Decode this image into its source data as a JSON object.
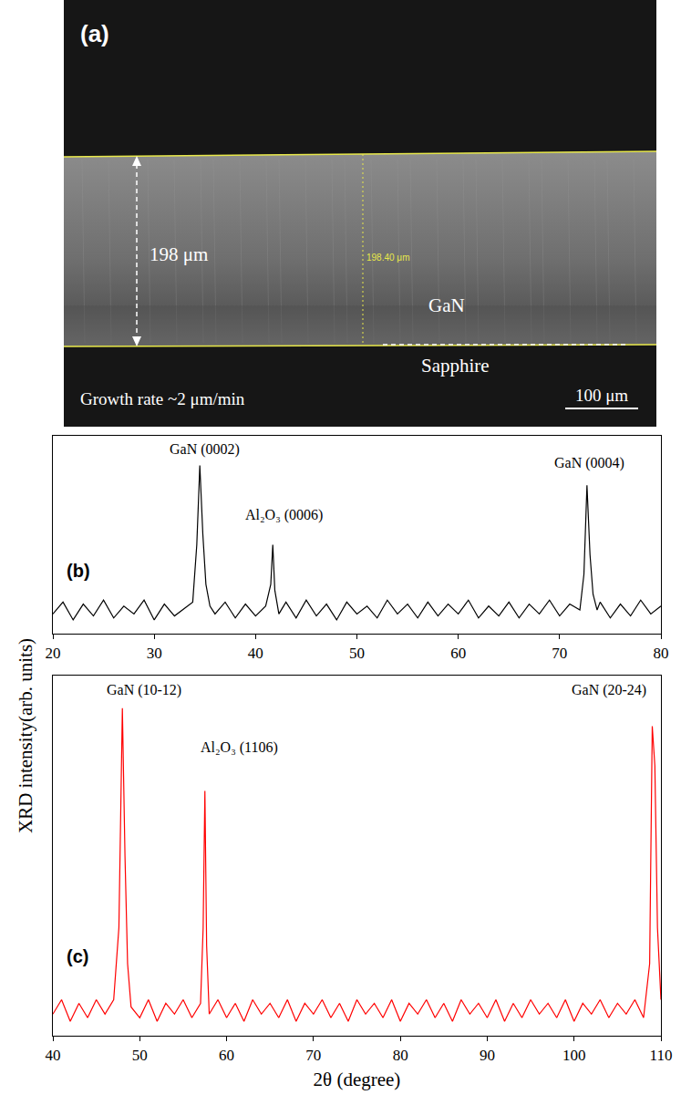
{
  "figure": {
    "y_label": "XRD intensity(arb. units)"
  },
  "panel_a": {
    "label": "(a)",
    "thickness_label": "198 μm",
    "measure_label": "198.40 μm",
    "layer_top": "GaN",
    "layer_bottom": "Sapphire",
    "growth_rate": "Growth rate ~2 μm/min",
    "scale_bar": "100 μm"
  },
  "chart_data": [
    {
      "type": "line",
      "panel": "(b)",
      "color": "#000000",
      "grid": false,
      "tick_labels": "x",
      "xlim": [
        20,
        80
      ],
      "xticks": [
        20,
        30,
        40,
        50,
        60,
        70,
        80
      ],
      "ylim": [
        0,
        1
      ],
      "x": [
        20,
        21,
        22,
        23,
        24,
        25,
        26,
        27,
        28,
        29,
        30,
        31,
        32,
        33,
        33.8,
        34.2,
        34.5,
        34.8,
        35.1,
        35.5,
        36,
        37,
        38,
        39,
        40,
        41,
        41.5,
        41.7,
        41.9,
        42.3,
        43,
        44,
        45,
        46,
        47,
        48,
        49,
        50,
        51,
        52,
        53,
        54,
        55,
        56,
        57,
        58,
        59,
        60,
        61,
        62,
        63,
        64,
        65,
        66,
        67,
        68,
        69,
        70,
        71,
        72,
        72.4,
        72.7,
        73.0,
        73.3,
        73.7,
        74,
        75,
        76,
        77,
        78,
        79,
        80
      ],
      "values": [
        0.1,
        0.16,
        0.07,
        0.15,
        0.09,
        0.17,
        0.08,
        0.14,
        0.1,
        0.17,
        0.07,
        0.15,
        0.09,
        0.13,
        0.16,
        0.45,
        0.85,
        0.5,
        0.25,
        0.14,
        0.1,
        0.16,
        0.08,
        0.15,
        0.09,
        0.14,
        0.25,
        0.45,
        0.22,
        0.1,
        0.16,
        0.08,
        0.17,
        0.09,
        0.15,
        0.07,
        0.16,
        0.1,
        0.14,
        0.08,
        0.17,
        0.1,
        0.15,
        0.08,
        0.16,
        0.09,
        0.15,
        0.1,
        0.17,
        0.08,
        0.14,
        0.09,
        0.16,
        0.08,
        0.15,
        0.1,
        0.17,
        0.09,
        0.15,
        0.12,
        0.3,
        0.75,
        0.4,
        0.2,
        0.12,
        0.16,
        0.08,
        0.15,
        0.09,
        0.17,
        0.1,
        0.14
      ],
      "annotations": [
        {
          "text": "GaN (0002)",
          "x": 35,
          "y": 0.93
        },
        {
          "text": "Al₂O₃ (0006)",
          "x": 42.8,
          "y": 0.6
        },
        {
          "text": "GaN (0004)",
          "x": 72.9,
          "y": 0.86
        }
      ]
    },
    {
      "type": "line",
      "panel": "(c)",
      "color": "#ff0000",
      "grid": false,
      "tick_labels": "x",
      "x_label": "2θ (degree)",
      "xlim": [
        40,
        110
      ],
      "xticks": [
        40,
        50,
        60,
        70,
        80,
        90,
        100,
        110
      ],
      "ylim": [
        0,
        1
      ],
      "x": [
        40,
        41,
        42,
        43,
        44,
        45,
        46,
        47,
        47.6,
        48.0,
        48.3,
        48.6,
        49,
        50,
        51,
        52,
        53,
        54,
        55,
        56,
        57,
        57.3,
        57.5,
        57.7,
        58,
        59,
        60,
        61,
        62,
        63,
        64,
        65,
        66,
        67,
        68,
        69,
        70,
        71,
        72,
        73,
        74,
        75,
        76,
        77,
        78,
        79,
        80,
        81,
        82,
        83,
        84,
        85,
        86,
        87,
        88,
        89,
        90,
        91,
        92,
        93,
        94,
        95,
        96,
        97,
        98,
        99,
        100,
        101,
        102,
        103,
        104,
        105,
        106,
        107,
        108,
        108.7,
        109.0,
        109.3,
        109.6,
        110
      ],
      "values": [
        0.06,
        0.1,
        0.04,
        0.09,
        0.05,
        0.1,
        0.06,
        0.1,
        0.3,
        0.91,
        0.5,
        0.2,
        0.08,
        0.05,
        0.1,
        0.04,
        0.09,
        0.06,
        0.1,
        0.05,
        0.09,
        0.3,
        0.68,
        0.25,
        0.06,
        0.1,
        0.05,
        0.09,
        0.04,
        0.1,
        0.06,
        0.09,
        0.05,
        0.1,
        0.04,
        0.09,
        0.06,
        0.1,
        0.05,
        0.09,
        0.04,
        0.1,
        0.06,
        0.09,
        0.05,
        0.1,
        0.04,
        0.09,
        0.06,
        0.1,
        0.05,
        0.09,
        0.04,
        0.1,
        0.06,
        0.09,
        0.05,
        0.1,
        0.04,
        0.09,
        0.05,
        0.1,
        0.06,
        0.09,
        0.05,
        0.1,
        0.04,
        0.09,
        0.06,
        0.1,
        0.05,
        0.09,
        0.06,
        0.1,
        0.05,
        0.2,
        0.86,
        0.75,
        0.3,
        0.1
      ],
      "annotations": [
        {
          "text": "GaN (10-12)",
          "x": 50.5,
          "y": 0.96
        },
        {
          "text": "Al₂O₃ (1106)",
          "x": 61.5,
          "y": 0.8
        },
        {
          "text": "GaN (20-24)",
          "x": 104,
          "y": 0.96
        }
      ]
    }
  ]
}
